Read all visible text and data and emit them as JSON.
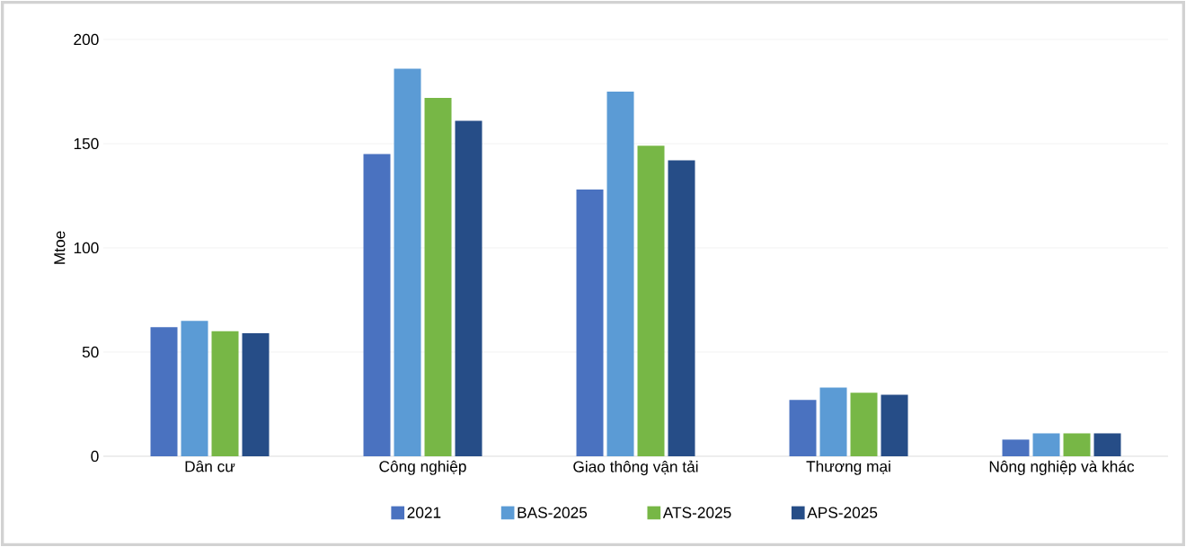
{
  "chart_data": {
    "type": "bar",
    "ylabel": "Mtoe",
    "categories": [
      "Dân cư",
      "Công nghiệp",
      "Giao thông vận tải",
      "Thương mại",
      "Nông nghiệp và khác"
    ],
    "series": [
      {
        "name": "2021",
        "color": "#4a72c0",
        "values": [
          62,
          145,
          128,
          27,
          8
        ]
      },
      {
        "name": "BAS-2025",
        "color": "#5b9bd5",
        "values": [
          65,
          186,
          175,
          33,
          11
        ]
      },
      {
        "name": "ATS-2025",
        "color": "#77b746",
        "values": [
          60,
          172,
          149,
          30.5,
          11
        ]
      },
      {
        "name": "APS-2025",
        "color": "#264d87",
        "values": [
          59,
          161,
          142,
          29.5,
          11
        ]
      }
    ],
    "ylim": [
      0,
      200
    ],
    "yticks": [
      0,
      50,
      100,
      150,
      200
    ],
    "grid": "y",
    "legend": "bottom"
  }
}
